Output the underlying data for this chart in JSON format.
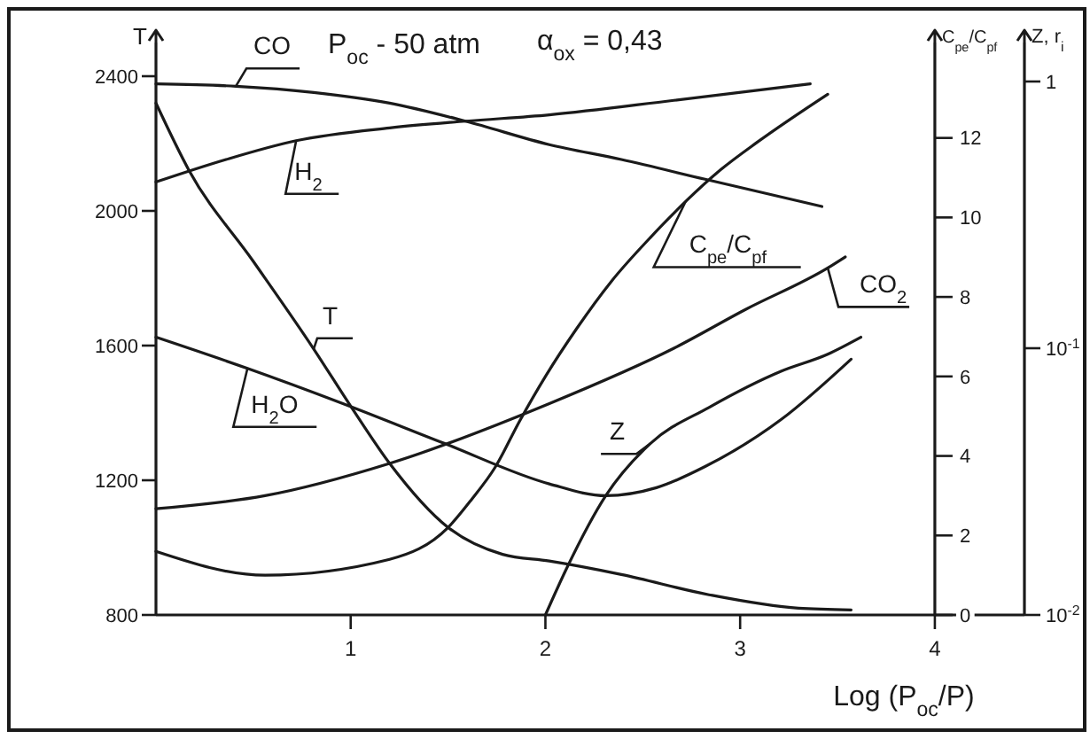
{
  "chart_data": {
    "type": "line",
    "title": "P$_{oc}$ - 50 atm",
    "subtitle": "α$_{ox}$ = 0,43",
    "xlabel": "Log (P$_{oc}$/P)",
    "ylabel": "T",
    "y2label": "C$_{pe}$/C$_{pf}$",
    "y3label": "Z, r$_{i}$",
    "xlim": [
      0,
      4.46
    ],
    "xticks": [
      1,
      2,
      3,
      4
    ],
    "ylim": [
      800,
      2500
    ],
    "yticks": [
      800,
      1200,
      1600,
      2000,
      2400
    ],
    "y2lim": [
      0,
      14.4
    ],
    "y2ticks": [
      0,
      2,
      4,
      6,
      8,
      10,
      12
    ],
    "y3lim": [
      0.01,
      1.4
    ],
    "y3ticks": [
      {
        "value": 0.01,
        "label": "10$^{-2}$"
      },
      {
        "value": 0.1,
        "label": "10$^{-1}$"
      },
      1
    ],
    "log": "y3",
    "series": [
      {
        "name": "CO",
        "color": "#1a1a1a",
        "axis": "y3",
        "x": [
          0,
          0.41,
          0.81,
          1.2,
          1.59,
          2.02,
          2.39,
          2.82,
          3.42
        ],
        "values": [
          0.98,
          0.96,
          0.91,
          0.83,
          0.71,
          0.58,
          0.51,
          0.43,
          0.34
        ]
      },
      {
        "name": "H$_{2}$",
        "color": "#1a1a1a",
        "axis": "y3",
        "x": [
          0,
          0.36,
          0.72,
          1.2,
          1.59,
          2.02,
          2.66,
          3.21,
          3.36
        ],
        "values": [
          0.42,
          0.51,
          0.6,
          0.67,
          0.71,
          0.75,
          0.85,
          0.95,
          0.98
        ]
      },
      {
        "name": "C$_{pe}$/C$_{pf}$",
        "color": "#1a1a1a",
        "axis": "y2",
        "x": [
          0,
          0.56,
          1.2,
          1.5,
          1.62,
          1.74,
          1.87,
          2.0,
          2.16,
          2.34,
          2.54,
          2.72,
          2.9,
          3.09,
          3.45
        ],
        "values": [
          1.6,
          1.0,
          1.4,
          2.2,
          2.9,
          3.7,
          4.9,
          6.0,
          7.2,
          8.4,
          9.5,
          10.4,
          11.2,
          11.9,
          13.1
        ]
      },
      {
        "name": "CO$_{2}$",
        "color": "#1a1a1a",
        "axis": "y3",
        "x": [
          0,
          0.56,
          1.2,
          2.02,
          2.66,
          3.03,
          3.45,
          3.54
        ],
        "values": [
          0.025,
          0.028,
          0.037,
          0.062,
          0.1,
          0.14,
          0.2,
          0.22
        ]
      },
      {
        "name": "T",
        "color": "#1a1a1a",
        "x": [
          0,
          0.17,
          0.5,
          0.81,
          1.0,
          1.2,
          1.5,
          1.78,
          2.02,
          2.39,
          2.84,
          3.3,
          3.57
        ],
        "values": [
          2320,
          2120,
          1850,
          1590,
          1420,
          1250,
          1060,
          980,
          960,
          920,
          860,
          820,
          815
        ]
      },
      {
        "name": "H$_{2}$O",
        "color": "#1a1a1a",
        "axis": "y3",
        "x": [
          0,
          0.47,
          0.96,
          1.48,
          2.02,
          2.31,
          2.57,
          2.82,
          3.21,
          3.57
        ],
        "values": [
          0.11,
          0.084,
          0.062,
          0.044,
          0.031,
          0.028,
          0.03,
          0.036,
          0.054,
          0.091
        ]
      },
      {
        "name": "Z",
        "color": "#1a1a1a",
        "axis": "y3",
        "x": [
          2.0,
          2.11,
          2.31,
          2.54,
          2.84,
          3.21,
          3.45,
          3.62
        ],
        "values": [
          0.01,
          0.015,
          0.028,
          0.044,
          0.06,
          0.082,
          0.095,
          0.11
        ]
      }
    ]
  }
}
